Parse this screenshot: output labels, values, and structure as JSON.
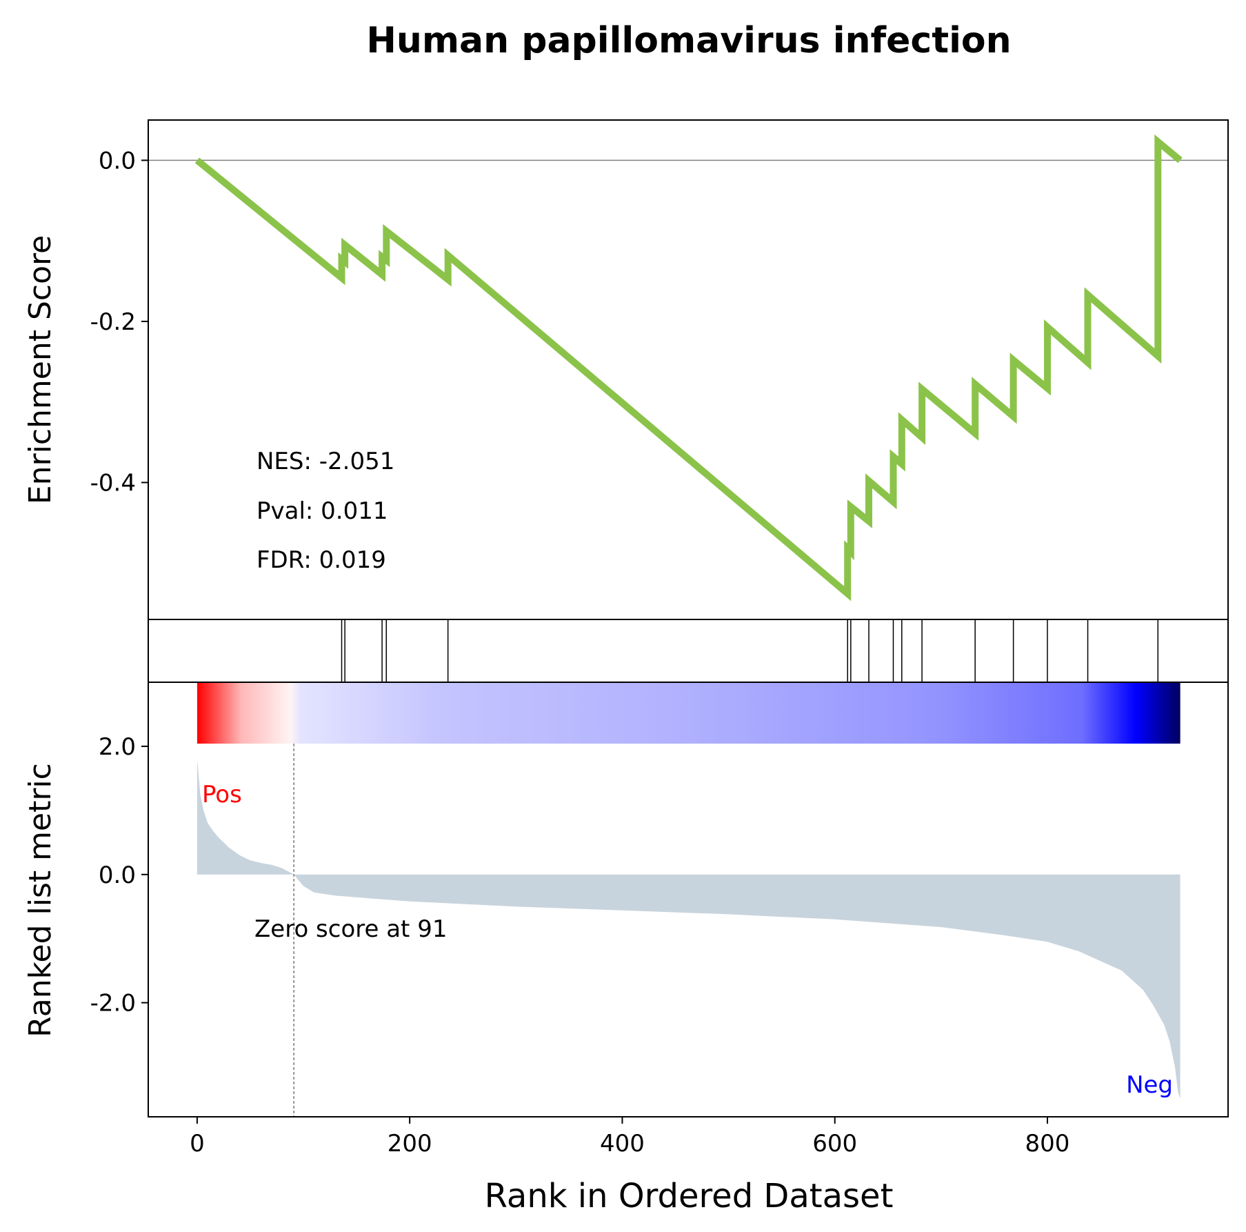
{
  "chart_data": {
    "type": "line",
    "title": "Human papillomavirus infection",
    "xlabel": "Rank in Ordered Dataset",
    "x_ticks": [
      "0",
      "200",
      "400",
      "600",
      "800"
    ],
    "x_tick_values": [
      0,
      200,
      400,
      600,
      800
    ],
    "xlim": [
      -46,
      970
    ],
    "total_genes": 925,
    "es_panel": {
      "ylabel": "Enrichment Score",
      "ylim": [
        -0.57,
        0.05
      ],
      "y_ticks": [
        "0.0",
        "-0.2",
        "-0.4"
      ],
      "y_tick_values": [
        0.0,
        -0.2,
        -0.4
      ],
      "zero_line": true,
      "line_color": "#8bc34a",
      "hits": [
        136,
        139,
        174,
        178,
        236,
        612,
        615,
        632,
        655,
        663,
        682,
        732,
        768,
        800,
        838,
        904
      ],
      "es_points": [
        [
          0,
          0.0
        ],
        [
          136,
          -0.146
        ],
        [
          136,
          -0.123
        ],
        [
          139,
          -0.126
        ],
        [
          139,
          -0.105
        ],
        [
          174,
          -0.142
        ],
        [
          174,
          -0.12
        ],
        [
          178,
          -0.124
        ],
        [
          178,
          -0.088
        ],
        [
          236,
          -0.148
        ],
        [
          236,
          -0.118
        ],
        [
          612,
          -0.538
        ],
        [
          612,
          -0.482
        ],
        [
          615,
          -0.486
        ],
        [
          615,
          -0.43
        ],
        [
          632,
          -0.448
        ],
        [
          632,
          -0.398
        ],
        [
          655,
          -0.424
        ],
        [
          655,
          -0.368
        ],
        [
          663,
          -0.377
        ],
        [
          663,
          -0.322
        ],
        [
          682,
          -0.344
        ],
        [
          682,
          -0.284
        ],
        [
          732,
          -0.339
        ],
        [
          732,
          -0.278
        ],
        [
          768,
          -0.318
        ],
        [
          768,
          -0.248
        ],
        [
          800,
          -0.283
        ],
        [
          800,
          -0.207
        ],
        [
          838,
          -0.251
        ],
        [
          838,
          -0.167
        ],
        [
          904,
          -0.243
        ],
        [
          904,
          0.023
        ],
        [
          925,
          0.0
        ]
      ],
      "stats": [
        "NES: -2.051",
        "Pval: 0.011",
        "FDR: 0.019"
      ]
    },
    "rank_panel": {
      "ylabel": "Ranked list metric",
      "ylim": [
        -3.78,
        3.0
      ],
      "y_ticks": [
        "2.0",
        "0.0",
        "-2.0"
      ],
      "y_tick_values": [
        2.0,
        0.0,
        -2.0
      ],
      "metric_points": [
        [
          0,
          1.8
        ],
        [
          3,
          1.25
        ],
        [
          6,
          1.0
        ],
        [
          10,
          0.8
        ],
        [
          15,
          0.68
        ],
        [
          20,
          0.58
        ],
        [
          30,
          0.42
        ],
        [
          40,
          0.3
        ],
        [
          50,
          0.22
        ],
        [
          60,
          0.18
        ],
        [
          70,
          0.15
        ],
        [
          80,
          0.1
        ],
        [
          91,
          0.0
        ],
        [
          100,
          -0.18
        ],
        [
          110,
          -0.28
        ],
        [
          130,
          -0.33
        ],
        [
          200,
          -0.42
        ],
        [
          300,
          -0.5
        ],
        [
          400,
          -0.56
        ],
        [
          500,
          -0.62
        ],
        [
          600,
          -0.7
        ],
        [
          700,
          -0.82
        ],
        [
          760,
          -0.95
        ],
        [
          800,
          -1.05
        ],
        [
          830,
          -1.2
        ],
        [
          850,
          -1.35
        ],
        [
          870,
          -1.5
        ],
        [
          890,
          -1.8
        ],
        [
          900,
          -2.05
        ],
        [
          910,
          -2.35
        ],
        [
          915,
          -2.6
        ],
        [
          920,
          -3.0
        ],
        [
          923,
          -3.4
        ],
        [
          925,
          -3.5
        ]
      ],
      "fill_color": "#c8d4dd",
      "zero_crossing": 91,
      "zero_label": "Zero score at 91",
      "pos_label": "Pos",
      "neg_label": "Neg",
      "pos_color": "#ff0000",
      "neg_color": "#0000ff"
    }
  }
}
